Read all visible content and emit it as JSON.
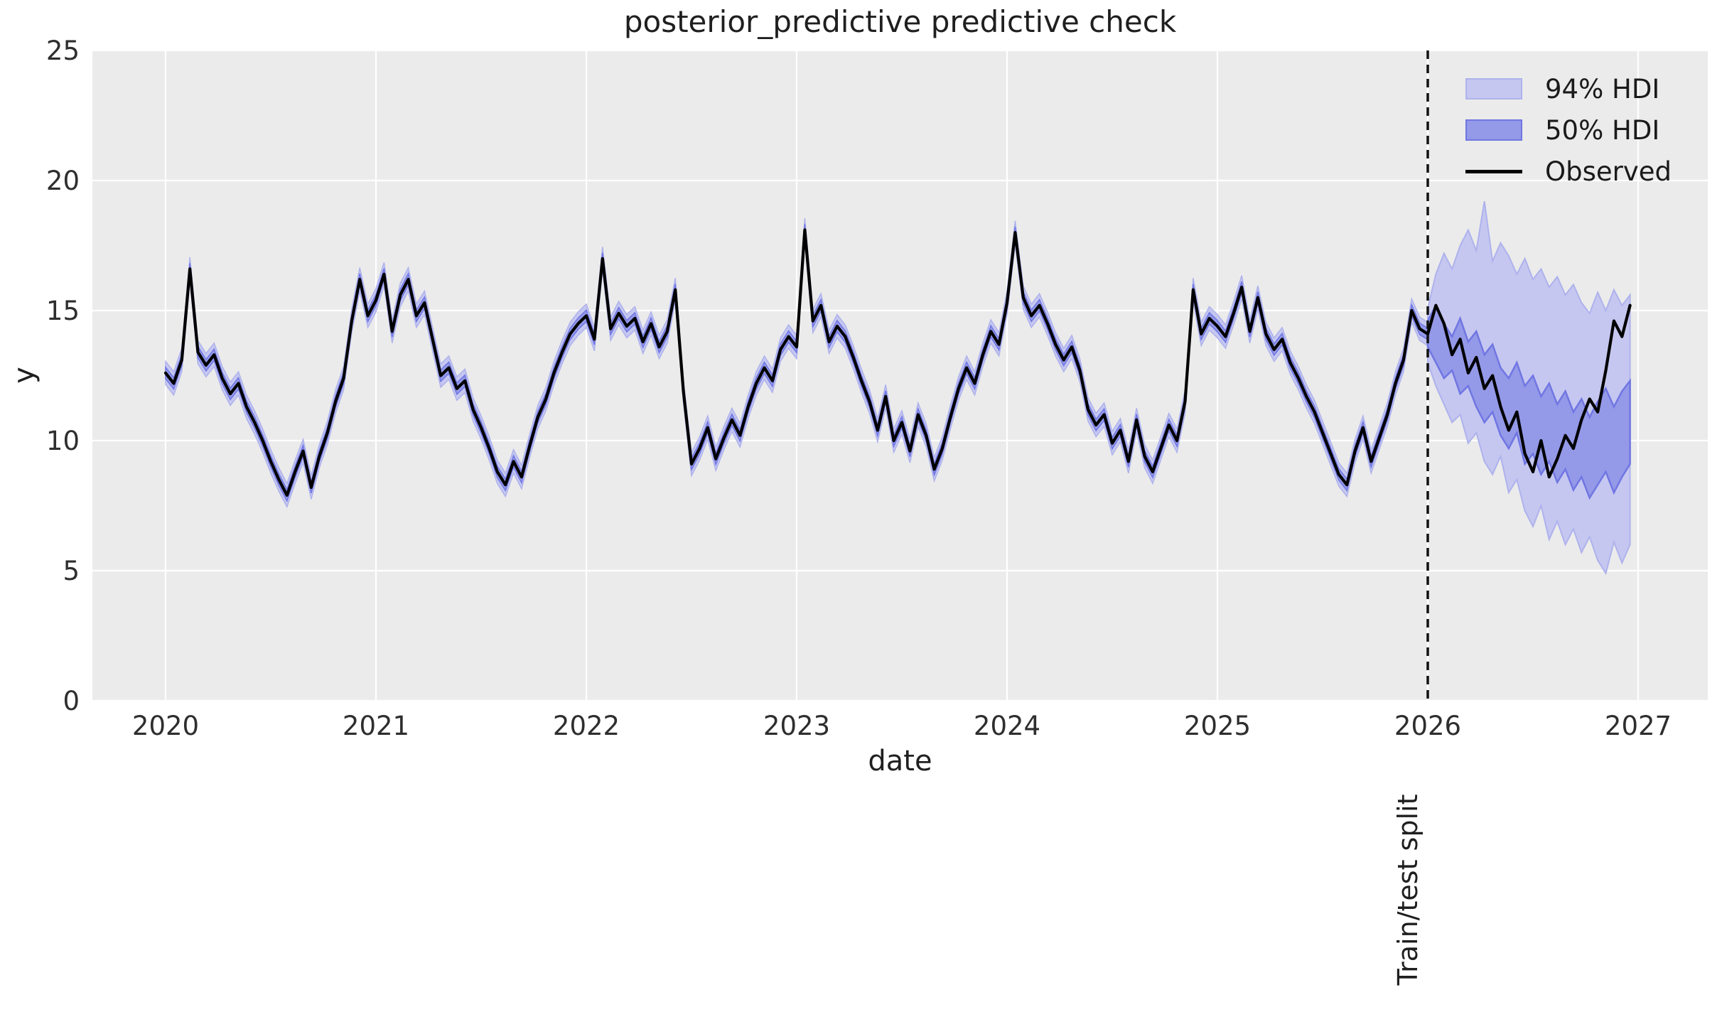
{
  "title": "posterior_predictive predictive check",
  "axis": {
    "xlabel": "date",
    "ylabel": "y"
  },
  "annotation": {
    "split_label": "Train/test split"
  },
  "legend": {
    "items": [
      {
        "label": "94% HDI",
        "swatch": "hdi94"
      },
      {
        "label": "50% HDI",
        "swatch": "hdi50"
      },
      {
        "label": "Observed",
        "swatch": "line"
      }
    ]
  },
  "chart_data": {
    "type": "line",
    "title": "posterior_predictive predictive check",
    "xlabel": "date",
    "ylabel": "y",
    "legend_position": "upper right",
    "grid": true,
    "xticks": [
      2020,
      2021,
      2022,
      2023,
      2024,
      2025,
      2026,
      2027
    ],
    "yticks": [
      0,
      5,
      10,
      15,
      20,
      25
    ],
    "xlim": [
      2019.652,
      2027.331
    ],
    "ylim": [
      0,
      25
    ],
    "split_x": 2026,
    "split_label": "Train/test split",
    "observed": {
      "name": "Observed",
      "x_start": 2020,
      "x_step": 0.0384615,
      "values": [
        12.6,
        12.2,
        13.1,
        16.6,
        13.4,
        12.9,
        13.3,
        12.4,
        11.8,
        12.2,
        11.3,
        10.7,
        10.0,
        9.2,
        8.5,
        7.9,
        8.8,
        9.6,
        8.2,
        9.4,
        10.3,
        11.5,
        12.4,
        14.6,
        16.2,
        14.8,
        15.4,
        16.4,
        14.2,
        15.6,
        16.2,
        14.8,
        15.3,
        13.9,
        12.5,
        12.8,
        12.0,
        12.3,
        11.2,
        10.5,
        9.7,
        8.8,
        8.3,
        9.2,
        8.6,
        9.8,
        10.9,
        11.6,
        12.6,
        13.4,
        14.1,
        14.5,
        14.8,
        13.9,
        17.0,
        14.3,
        14.9,
        14.4,
        14.7,
        13.8,
        14.5,
        13.6,
        14.2,
        15.8,
        11.9,
        9.1,
        9.7,
        10.5,
        9.3,
        10.1,
        10.8,
        10.2,
        11.3,
        12.2,
        12.8,
        12.3,
        13.5,
        14.0,
        13.6,
        18.1,
        14.6,
        15.2,
        13.8,
        14.4,
        14.0,
        13.2,
        12.3,
        11.5,
        10.4,
        11.7,
        10.0,
        10.7,
        9.6,
        11.0,
        10.2,
        8.9,
        9.7,
        10.9,
        12.0,
        12.8,
        12.2,
        13.3,
        14.2,
        13.7,
        15.3,
        18.0,
        15.5,
        14.8,
        15.2,
        14.5,
        13.7,
        13.1,
        13.6,
        12.7,
        11.2,
        10.6,
        11.0,
        9.9,
        10.4,
        9.2,
        10.8,
        9.4,
        8.8,
        9.7,
        10.6,
        10.0,
        11.5,
        15.8,
        14.1,
        14.7,
        14.4,
        14.0,
        14.9,
        15.9,
        14.2,
        15.5,
        14.1,
        13.5,
        13.9,
        13.0,
        12.4,
        11.7,
        11.1,
        10.3,
        9.5,
        8.7,
        8.3,
        9.6,
        10.5,
        9.2,
        10.1,
        11.0,
        12.2,
        13.1,
        15.0,
        14.3,
        14.1,
        15.2,
        14.5,
        13.3,
        13.9,
        12.6,
        13.2,
        12.0,
        12.5,
        11.3,
        10.4,
        11.1,
        9.5,
        8.8,
        10.0,
        8.6,
        9.3,
        10.2,
        9.7,
        10.8,
        11.6,
        11.1,
        12.7,
        14.6,
        14.0,
        15.2
      ]
    },
    "train_band": {
      "hdi94_halfwidth": 0.45,
      "hdi50_halfwidth": 0.22
    },
    "forecast_band": {
      "x_start": 2026,
      "x_step": 0.0384615,
      "hi94": [
        15.1,
        16.4,
        17.2,
        16.6,
        17.5,
        18.1,
        17.3,
        19.2,
        16.9,
        17.6,
        17.1,
        16.4,
        17.0,
        16.2,
        16.6,
        15.9,
        16.3,
        15.6,
        16.0,
        15.3,
        14.9,
        15.7,
        15.0,
        15.8,
        15.2,
        15.6
      ],
      "lo94": [
        13.0,
        12.1,
        11.4,
        10.7,
        11.0,
        9.9,
        10.3,
        9.2,
        8.7,
        9.4,
        8.0,
        8.5,
        7.3,
        6.7,
        7.5,
        6.2,
        6.9,
        6.0,
        6.6,
        5.7,
        6.3,
        5.4,
        4.9,
        6.1,
        5.3,
        6.0
      ],
      "hi50": [
        14.6,
        15.2,
        14.5,
        14.0,
        14.7,
        13.8,
        14.2,
        13.3,
        13.7,
        12.8,
        12.4,
        13.0,
        12.1,
        12.5,
        11.7,
        12.2,
        11.4,
        11.9,
        11.1,
        11.6,
        10.9,
        11.5,
        12.0,
        11.3,
        11.9,
        12.3
      ],
      "lo50": [
        13.6,
        13.0,
        12.4,
        12.7,
        11.8,
        12.1,
        11.3,
        10.7,
        11.1,
        10.2,
        9.7,
        10.3,
        9.1,
        9.5,
        8.7,
        9.2,
        8.4,
        8.9,
        8.1,
        8.6,
        7.8,
        8.3,
        8.8,
        8.0,
        8.6,
        9.1
      ]
    },
    "colors": {
      "background": "#ebebeb",
      "grid": "#ffffff",
      "hdi94_fill": "#c5c7f0",
      "hdi94_edge": "#aeb2ec",
      "hdi50_fill": "#9499e8",
      "hdi50_edge": "#7076e2",
      "observed": "#000000",
      "split_line": "#111111",
      "tick_text": "#2e2e2e"
    }
  }
}
